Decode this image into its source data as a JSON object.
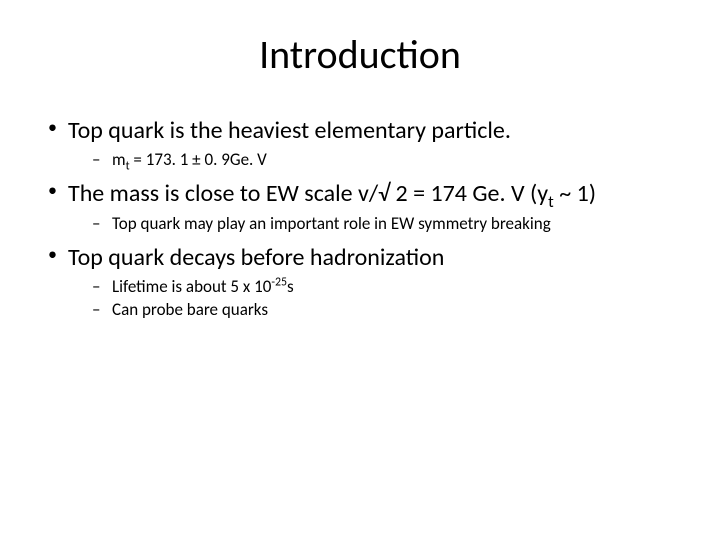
{
  "title": "Introduction",
  "bullets": {
    "b1": "Top quark is the heaviest elementary particle.",
    "b1_sub1_pre": "m",
    "b1_sub1_sub": "t",
    "b1_sub1_post": " = 173. 1 ± 0. 9Ge. V",
    "b2_pre": "The mass is close to EW scale v/√ 2 = 174 Ge. V (y",
    "b2_sub": "t",
    "b2_post": " ~ 1)",
    "b2_sub1": "Top quark may play an important role in EW symmetry breaking",
    "b3": "Top quark decays before hadronization",
    "b3_sub1_pre": "Lifetime is about 5 x 10",
    "b3_sub1_sup": "-25",
    "b3_sub1_post": "s",
    "b3_sub2": "Can probe bare quarks"
  }
}
